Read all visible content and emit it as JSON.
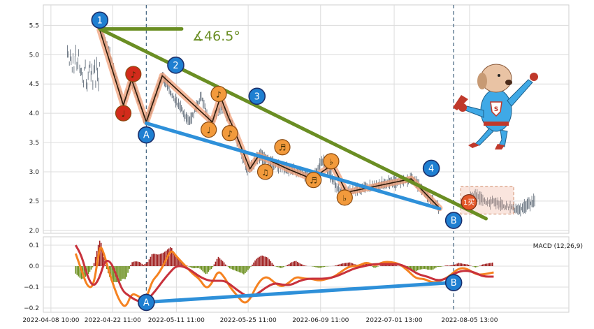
{
  "chart_data": [
    {
      "type": "line",
      "panel": "price",
      "yticks": [
        "2.0",
        "2.5",
        "3.0",
        "3.5",
        "4.0",
        "4.5",
        "5.0",
        "5.5"
      ],
      "ylim": [
        1.95,
        5.85
      ],
      "xlim": [
        0,
        870
      ],
      "price_path": [
        [
          71,
          5.42
        ],
        [
          76,
          5.33
        ],
        [
          80,
          5.22
        ],
        [
          85,
          5.08
        ],
        [
          90,
          4.92
        ],
        [
          95,
          4.75
        ],
        [
          100,
          4.58
        ],
        [
          106,
          4.32
        ],
        [
          111,
          4.14
        ],
        [
          116,
          4.28
        ],
        [
          121,
          4.45
        ],
        [
          125,
          4.58
        ],
        [
          131,
          4.42
        ],
        [
          137,
          4.25
        ],
        [
          143,
          4.02
        ],
        [
          150,
          3.85
        ],
        [
          157,
          4.05
        ],
        [
          164,
          4.25
        ],
        [
          171,
          4.45
        ],
        [
          177,
          4.64
        ],
        [
          184,
          4.5
        ],
        [
          190,
          4.38
        ],
        [
          198,
          4.25
        ],
        [
          206,
          4.12
        ],
        [
          214,
          4.0
        ],
        [
          222,
          3.88
        ],
        [
          229,
          3.95
        ],
        [
          236,
          4.15
        ],
        [
          243,
          4.28
        ],
        [
          250,
          4.08
        ],
        [
          257,
          3.9
        ],
        [
          262,
          3.85
        ],
        [
          270,
          4.05
        ],
        [
          280,
          4.12
        ],
        [
          290,
          3.92
        ],
        [
          300,
          3.7
        ],
        [
          308,
          3.45
        ],
        [
          314,
          3.22
        ],
        [
          320,
          3.08
        ],
        [
          326,
          3.05
        ],
        [
          333,
          3.15
        ],
        [
          341,
          3.28
        ],
        [
          350,
          3.24
        ],
        [
          360,
          3.18
        ],
        [
          370,
          3.12
        ],
        [
          380,
          3.08
        ],
        [
          390,
          3.05
        ],
        [
          400,
          3.02
        ],
        [
          410,
          3.0
        ],
        [
          420,
          2.96
        ],
        [
          431,
          2.9
        ],
        [
          440,
          3.02
        ],
        [
          450,
          3.2
        ],
        [
          458,
          3.05
        ],
        [
          466,
          2.88
        ],
        [
          474,
          2.72
        ],
        [
          482,
          2.62
        ],
        [
          490,
          2.65
        ],
        [
          498,
          2.68
        ],
        [
          510,
          2.7
        ],
        [
          525,
          2.73
        ],
        [
          540,
          2.76
        ],
        [
          555,
          2.8
        ],
        [
          570,
          2.82
        ],
        [
          585,
          2.85
        ],
        [
          600,
          2.88
        ],
        [
          610,
          2.8
        ],
        [
          620,
          2.68
        ],
        [
          630,
          2.55
        ],
        [
          640,
          2.45
        ],
        [
          648,
          2.38
        ]
      ],
      "price_extra": [
        [
          700,
          2.56
        ],
        [
          710,
          2.6
        ],
        [
          720,
          2.53
        ],
        [
          730,
          2.48
        ],
        [
          740,
          2.5
        ],
        [
          750,
          2.44
        ],
        [
          760,
          2.42
        ],
        [
          770,
          2.38
        ],
        [
          780,
          2.35
        ],
        [
          790,
          2.4
        ],
        [
          800,
          2.45
        ],
        [
          810,
          2.5
        ]
      ],
      "wave_points": [
        [
          71,
          5.42
        ],
        [
          111,
          4.14
        ],
        [
          125,
          4.58
        ],
        [
          150,
          3.85
        ],
        [
          177,
          4.64
        ],
        [
          262,
          3.85
        ],
        [
          276,
          4.28
        ],
        [
          290,
          3.92
        ],
        [
          300,
          3.7
        ],
        [
          326,
          3.05
        ],
        [
          341,
          3.28
        ],
        [
          390,
          3.05
        ],
        [
          431,
          2.88
        ],
        [
          466,
          3.12
        ],
        [
          490,
          2.65
        ],
        [
          600,
          2.88
        ],
        [
          648,
          2.38
        ]
      ],
      "trend_lines": [
        {
          "from": [
            71,
            5.44
          ],
          "to": [
            727,
            2.2
          ],
          "color": "#6a8e23"
        },
        {
          "from": [
            150,
            3.83
          ],
          "to": [
            648,
            2.37
          ],
          "color": "#2e90d9"
        },
        {
          "from": [
            71,
            5.44
          ],
          "to": [
            210,
            5.44
          ],
          "color": "#6a8e23"
        }
      ],
      "angle_label": "∡46.5°",
      "wave_badges": [
        {
          "label": "1",
          "x": 71,
          "y": 5.59,
          "color": "#1f7fd1"
        },
        {
          "label": "2",
          "x": 200,
          "y": 4.82,
          "color": "#1f7fd1"
        },
        {
          "label": "3",
          "x": 338,
          "y": 4.29,
          "color": "#1f7fd1"
        },
        {
          "label": "4",
          "x": 634,
          "y": 3.06,
          "color": "#1f7fd1"
        },
        {
          "label": "A",
          "x": 150,
          "y": 3.63,
          "color": "#1f7fd1"
        },
        {
          "label": "B",
          "x": 672,
          "y": 2.17,
          "color": "#1f7fd1"
        }
      ],
      "note_markers": [
        {
          "label": "♩",
          "x": 111,
          "y": 4.0,
          "color": "#d22b1b"
        },
        {
          "label": "♪",
          "x": 128,
          "y": 4.67,
          "color": "#d22b1b"
        },
        {
          "label": "♩",
          "x": 256,
          "y": 3.72,
          "color": "#f29a3c"
        },
        {
          "label": "♪",
          "x": 273,
          "y": 4.33,
          "color": "#f29a3c"
        },
        {
          "label": "♪",
          "x": 292,
          "y": 3.66,
          "color": "#f29a3c"
        },
        {
          "label": "♫",
          "x": 352,
          "y": 3.0,
          "color": "#f29a3c"
        },
        {
          "label": "♬",
          "x": 381,
          "y": 3.42,
          "color": "#f29a3c"
        },
        {
          "label": "♬",
          "x": 434,
          "y": 2.86,
          "color": "#f29a3c"
        },
        {
          "label": "♭",
          "x": 464,
          "y": 3.18,
          "color": "#f29a3c"
        },
        {
          "label": "♭",
          "x": 487,
          "y": 2.56,
          "color": "#f29a3c"
        }
      ],
      "buy_marker": {
        "label": "1买",
        "x": 698,
        "y": 2.48,
        "color": "#e3572a"
      },
      "highlight_box": {
        "x0": 684,
        "x1": 774,
        "y0": 2.28,
        "y1": 2.75
      },
      "vlines": [
        150,
        672
      ]
    },
    {
      "type": "bar",
      "panel": "macd",
      "title": "MACD (12,26,9)",
      "yticks": [
        "0.1",
        "0.0",
        "−0.1",
        "−0.2"
      ],
      "ylim": [
        -0.22,
        0.14
      ],
      "xlim": [
        0,
        870
      ],
      "xtick_labels": [
        "2022-04-08 10:00",
        "2022-04-22 11:00",
        "2022-05-11 11:00",
        "2022-05-25 11:00",
        "2022-06-09 11:00",
        "2022-07-01 13:00",
        "2022-08-05 13:00"
      ],
      "xtick_positions": [
        -12,
        93,
        201,
        323,
        446,
        571,
        699
      ],
      "macd_line": [
        [
          30,
          0.06
        ],
        [
          40,
          -0.02
        ],
        [
          50,
          -0.1
        ],
        [
          60,
          -0.1
        ],
        [
          68,
          0.04
        ],
        [
          72,
          0.1
        ],
        [
          78,
          0.06
        ],
        [
          86,
          -0.02
        ],
        [
          95,
          -0.1
        ],
        [
          105,
          -0.17
        ],
        [
          115,
          -0.2
        ],
        [
          125,
          -0.13
        ],
        [
          135,
          -0.14
        ],
        [
          145,
          -0.16
        ],
        [
          152,
          -0.14
        ],
        [
          160,
          -0.07
        ],
        [
          170,
          -0.04
        ],
        [
          180,
          0.01
        ],
        [
          192,
          0.08
        ],
        [
          200,
          0.05
        ],
        [
          210,
          0.02
        ],
        [
          220,
          -0.01
        ],
        [
          230,
          -0.04
        ],
        [
          240,
          -0.06
        ],
        [
          252,
          -0.11
        ],
        [
          262,
          -0.08
        ],
        [
          272,
          -0.02
        ],
        [
          282,
          -0.05
        ],
        [
          292,
          -0.1
        ],
        [
          304,
          -0.14
        ],
        [
          316,
          -0.18
        ],
        [
          326,
          -0.16
        ],
        [
          336,
          -0.1
        ],
        [
          346,
          -0.06
        ],
        [
          356,
          -0.05
        ],
        [
          368,
          -0.08
        ],
        [
          380,
          -0.1
        ],
        [
          392,
          -0.08
        ],
        [
          404,
          -0.05
        ],
        [
          418,
          -0.06
        ],
        [
          430,
          -0.06
        ],
        [
          444,
          -0.07
        ],
        [
          458,
          -0.06
        ],
        [
          470,
          -0.05
        ],
        [
          484,
          -0.02
        ],
        [
          496,
          0.0
        ],
        [
          510,
          0.0
        ],
        [
          524,
          0.02
        ],
        [
          538,
          0.0
        ],
        [
          552,
          0.02
        ],
        [
          566,
          0.02
        ],
        [
          580,
          0.01
        ],
        [
          594,
          -0.02
        ],
        [
          608,
          -0.06
        ],
        [
          622,
          -0.06
        ],
        [
          636,
          -0.08
        ],
        [
          650,
          -0.07
        ],
        [
          664,
          -0.05
        ],
        [
          680,
          -0.01
        ],
        [
          694,
          -0.01
        ],
        [
          710,
          -0.04
        ],
        [
          722,
          -0.04
        ],
        [
          740,
          -0.03
        ]
      ],
      "signal_line": [
        [
          30,
          0.1
        ],
        [
          40,
          0.05
        ],
        [
          50,
          -0.05
        ],
        [
          60,
          -0.1
        ],
        [
          70,
          -0.06
        ],
        [
          80,
          0.03
        ],
        [
          90,
          0.02
        ],
        [
          100,
          -0.05
        ],
        [
          110,
          -0.12
        ],
        [
          120,
          -0.14
        ],
        [
          130,
          -0.16
        ],
        [
          140,
          -0.17
        ],
        [
          152,
          -0.16
        ],
        [
          165,
          -0.12
        ],
        [
          178,
          -0.07
        ],
        [
          190,
          -0.03
        ],
        [
          200,
          0.0
        ],
        [
          212,
          0.0
        ],
        [
          226,
          -0.02
        ],
        [
          240,
          -0.05
        ],
        [
          256,
          -0.07
        ],
        [
          270,
          -0.07
        ],
        [
          284,
          -0.07
        ],
        [
          298,
          -0.1
        ],
        [
          312,
          -0.13
        ],
        [
          326,
          -0.15
        ],
        [
          340,
          -0.13
        ],
        [
          354,
          -0.1
        ],
        [
          368,
          -0.08
        ],
        [
          382,
          -0.09
        ],
        [
          396,
          -0.09
        ],
        [
          410,
          -0.07
        ],
        [
          424,
          -0.06
        ],
        [
          440,
          -0.06
        ],
        [
          456,
          -0.06
        ],
        [
          472,
          -0.05
        ],
        [
          488,
          -0.03
        ],
        [
          504,
          -0.01
        ],
        [
          520,
          0.0
        ],
        [
          536,
          0.01
        ],
        [
          552,
          0.01
        ],
        [
          566,
          0.01
        ],
        [
          580,
          0.01
        ],
        [
          596,
          -0.01
        ],
        [
          612,
          -0.04
        ],
        [
          628,
          -0.05
        ],
        [
          644,
          -0.07
        ],
        [
          660,
          -0.06
        ],
        [
          676,
          -0.03
        ],
        [
          692,
          -0.02
        ],
        [
          708,
          -0.03
        ],
        [
          722,
          -0.05
        ],
        [
          740,
          -0.05
        ]
      ],
      "macd_trend": {
        "from": [
          150,
          -0.172
        ],
        "to": [
          672,
          -0.078
        ],
        "color": "#2e90d9"
      },
      "badges": [
        {
          "label": "A",
          "x": 150,
          "y": -0.173,
          "color": "#1f7fd1"
        },
        {
          "label": "B",
          "x": 672,
          "y": -0.079,
          "color": "#1f7fd1"
        }
      ],
      "vlines": [
        150,
        672
      ]
    }
  ],
  "mascot": {
    "icon": "superhero-dog-icon",
    "emblem": "S"
  }
}
